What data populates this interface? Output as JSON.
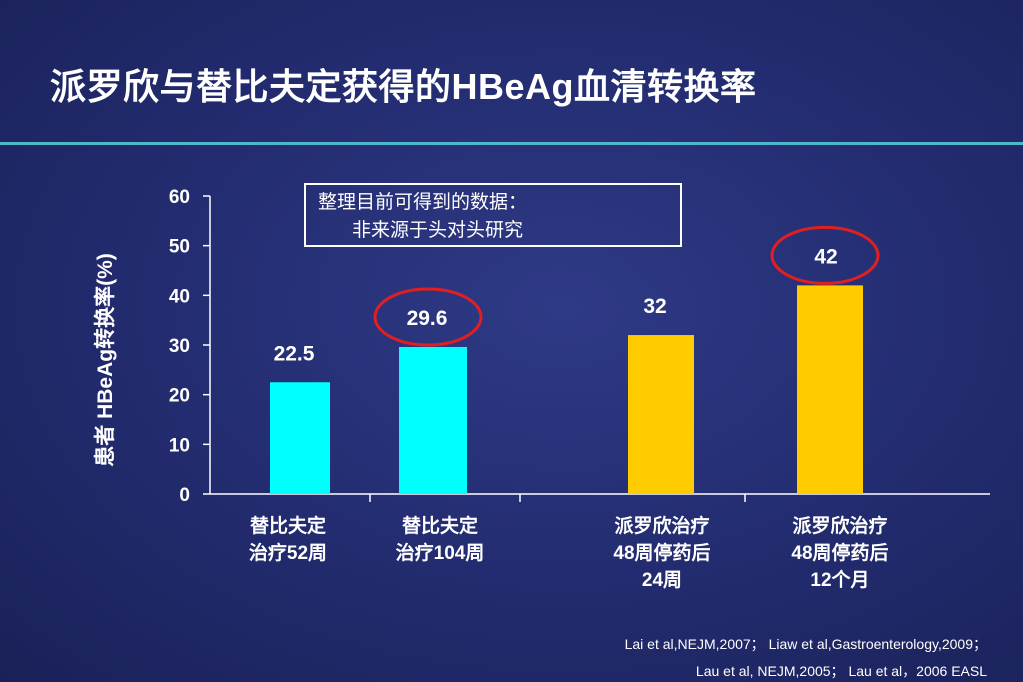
{
  "title": "派罗欣与替比夫定获得的HBeAg血清转换率",
  "note": {
    "line1": "整理目前可得到的数据：",
    "line2": "非来源于头对头研究"
  },
  "references": [
    "Lai et al,NEJM,2007； Liaw et al,Gastroenterology,2009；",
    "Lau et al, NEJM,2005； Lau et al，2006 EASL"
  ],
  "colors": {
    "cyan_bar": "#00ffff",
    "gold_bar": "#ffcc00",
    "highlight_ring": "#e02020"
  },
  "chart_data": {
    "type": "bar",
    "ylabel": "患者 HBeAg转换率(%)",
    "xlabel": "",
    "ylim": [
      0,
      60
    ],
    "yticks": [
      0,
      10,
      20,
      30,
      40,
      50,
      60
    ],
    "grid": false,
    "categories": [
      [
        "替比夫定",
        "治疗52周"
      ],
      [
        "替比夫定",
        "治疗104周"
      ],
      [
        "派罗欣治疗",
        "48周停药后",
        "24周"
      ],
      [
        "派罗欣治疗",
        "48周停药后",
        "12个月"
      ]
    ],
    "values": [
      22.5,
      29.6,
      32,
      42
    ],
    "value_labels": [
      "22.5",
      "29.6",
      "32",
      "42"
    ],
    "bar_colors": [
      "#00ffff",
      "#00ffff",
      "#ffcc00",
      "#ffcc00"
    ],
    "highlighted": [
      false,
      true,
      false,
      true
    ]
  }
}
